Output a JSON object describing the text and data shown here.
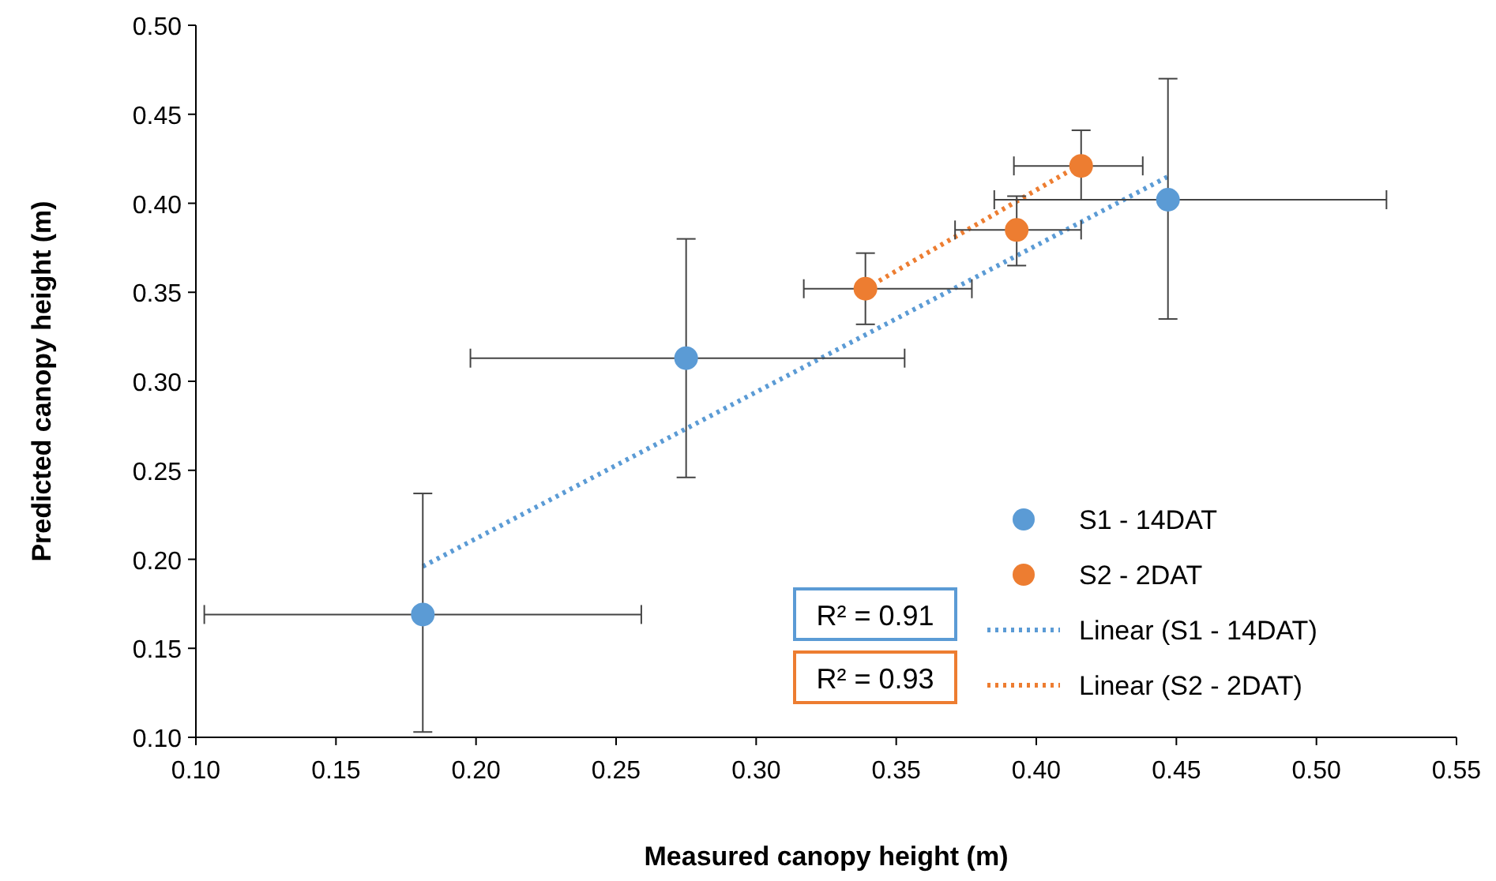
{
  "chart_data": {
    "type": "scatter",
    "xlabel": "Measured canopy height (m)",
    "ylabel": "Predicted canopy height (m)",
    "xlim": [
      0.1,
      0.55
    ],
    "ylim": [
      0.1,
      0.5
    ],
    "xticks": [
      {
        "value": 0.1,
        "label": "0.10"
      },
      {
        "value": 0.15,
        "label": "0.15"
      },
      {
        "value": 0.2,
        "label": "0.20"
      },
      {
        "value": 0.25,
        "label": "0.25"
      },
      {
        "value": 0.3,
        "label": "0.30"
      },
      {
        "value": 0.35,
        "label": "0.35"
      },
      {
        "value": 0.4,
        "label": "0.40"
      },
      {
        "value": 0.45,
        "label": "0.45"
      },
      {
        "value": 0.5,
        "label": "0.50"
      },
      {
        "value": 0.55,
        "label": "0.55"
      }
    ],
    "yticks": [
      {
        "value": 0.1,
        "label": "0.10"
      },
      {
        "value": 0.15,
        "label": "0.15"
      },
      {
        "value": 0.2,
        "label": "0.20"
      },
      {
        "value": 0.25,
        "label": "0.25"
      },
      {
        "value": 0.3,
        "label": "0.30"
      },
      {
        "value": 0.35,
        "label": "0.35"
      },
      {
        "value": 0.4,
        "label": "0.40"
      },
      {
        "value": 0.45,
        "label": "0.45"
      },
      {
        "value": 0.5,
        "label": "0.50"
      }
    ],
    "grid": false,
    "legend": "bottom right",
    "marker": "circle",
    "series": [
      {
        "name": "S1 - 14DAT",
        "color": "#5b9bd5",
        "x": [
          0.181,
          0.275,
          0.447
        ],
        "values": [
          0.169,
          0.313,
          0.402
        ],
        "errors": [
          [
            0.103,
            0.237
          ],
          [
            0.246,
            0.38
          ],
          [
            0.335,
            0.47
          ]
        ],
        "xerrors": [
          [
            0.103,
            0.259
          ],
          [
            0.198,
            0.353
          ],
          [
            0.385,
            0.525
          ]
        ]
      },
      {
        "name": "S2 - 2DAT",
        "color": "#ed7d31",
        "x": [
          0.339,
          0.393,
          0.416
        ],
        "values": [
          0.352,
          0.385,
          0.421
        ],
        "errors": [
          [
            0.332,
            0.372
          ],
          [
            0.365,
            0.404
          ],
          [
            0.402,
            0.441
          ]
        ],
        "xerrors": [
          [
            0.317,
            0.377
          ],
          [
            0.371,
            0.416
          ],
          [
            0.392,
            0.438
          ]
        ]
      },
      {
        "name": "Linear (S1 - 14DAT)",
        "type": "line",
        "marker": "none",
        "line_style": "dotted",
        "color": "#5b9bd5",
        "x": [
          0.181,
          0.447
        ],
        "values": [
          0.196,
          0.415
        ]
      },
      {
        "name": "Linear (S2 - 2DAT)",
        "type": "line",
        "marker": "none",
        "line_style": "dotted",
        "color": "#ed7d31",
        "x": [
          0.339,
          0.416
        ],
        "values": [
          0.352,
          0.422
        ]
      }
    ],
    "annotations": [
      "R² = 0.91",
      "R² = 0.93"
    ]
  }
}
